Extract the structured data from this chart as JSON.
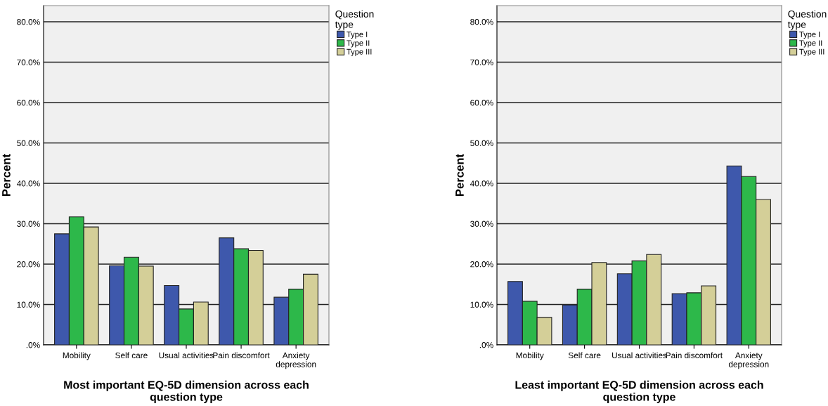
{
  "chart_data": [
    {
      "type": "bar",
      "xlabel": "Most important EQ-5D dimension across each question type",
      "ylabel": "Percent",
      "legend_title": "Question type",
      "categories": [
        "Mobility",
        "Self care",
        "Usual activities",
        "Pain discomfort",
        "Anxiety depression"
      ],
      "series": [
        {
          "name": "Type I",
          "color": "#3e58ac",
          "values": [
            27.5,
            19.6,
            14.7,
            26.5,
            11.8
          ]
        },
        {
          "name": "Type II",
          "color": "#2db84a",
          "values": [
            31.7,
            21.7,
            8.9,
            23.8,
            13.8
          ]
        },
        {
          "name": "Type III",
          "color": "#d4cf98",
          "values": [
            29.2,
            19.5,
            10.6,
            23.4,
            17.5
          ]
        }
      ],
      "ylim": [
        0,
        84
      ],
      "yticks": [
        {
          "value": 0,
          "label": ".0%"
        },
        {
          "value": 10,
          "label": "10.0%"
        },
        {
          "value": 20,
          "label": "20.0%"
        },
        {
          "value": 30,
          "label": "30.0%"
        },
        {
          "value": 40,
          "label": "40.0%"
        },
        {
          "value": 50,
          "label": "50.0%"
        },
        {
          "value": 60,
          "label": "60.0%"
        },
        {
          "value": 70,
          "label": "70.0%"
        },
        {
          "value": 80,
          "label": "80.0%"
        }
      ],
      "grid": "y",
      "legend": "top right"
    },
    {
      "type": "bar",
      "xlabel": "Least important EQ-5D dimension across each question type",
      "ylabel": "Percent",
      "legend_title": "Question type",
      "categories": [
        "Mobility",
        "Self care",
        "Usual activities",
        "Pain discomfort",
        "Anxiety depression"
      ],
      "series": [
        {
          "name": "Type I",
          "color": "#3e58ac",
          "values": [
            15.7,
            9.9,
            17.6,
            12.7,
            44.3
          ]
        },
        {
          "name": "Type II",
          "color": "#2db84a",
          "values": [
            10.8,
            13.8,
            20.8,
            12.9,
            41.7
          ]
        },
        {
          "name": "Type III",
          "color": "#d4cf98",
          "values": [
            6.8,
            20.4,
            22.4,
            14.6,
            36.0
          ]
        }
      ],
      "ylim": [
        0,
        84
      ],
      "yticks": [
        {
          "value": 0,
          "label": ".0%"
        },
        {
          "value": 10,
          "label": "10.0%"
        },
        {
          "value": 20,
          "label": "20.0%"
        },
        {
          "value": 30,
          "label": "30.0%"
        },
        {
          "value": 40,
          "label": "40.0%"
        },
        {
          "value": 50,
          "label": "50.0%"
        },
        {
          "value": 60,
          "label": "60.0%"
        },
        {
          "value": 70,
          "label": "70.0%"
        },
        {
          "value": 80,
          "label": "80.0%"
        }
      ],
      "grid": "y",
      "legend": "top right"
    }
  ]
}
